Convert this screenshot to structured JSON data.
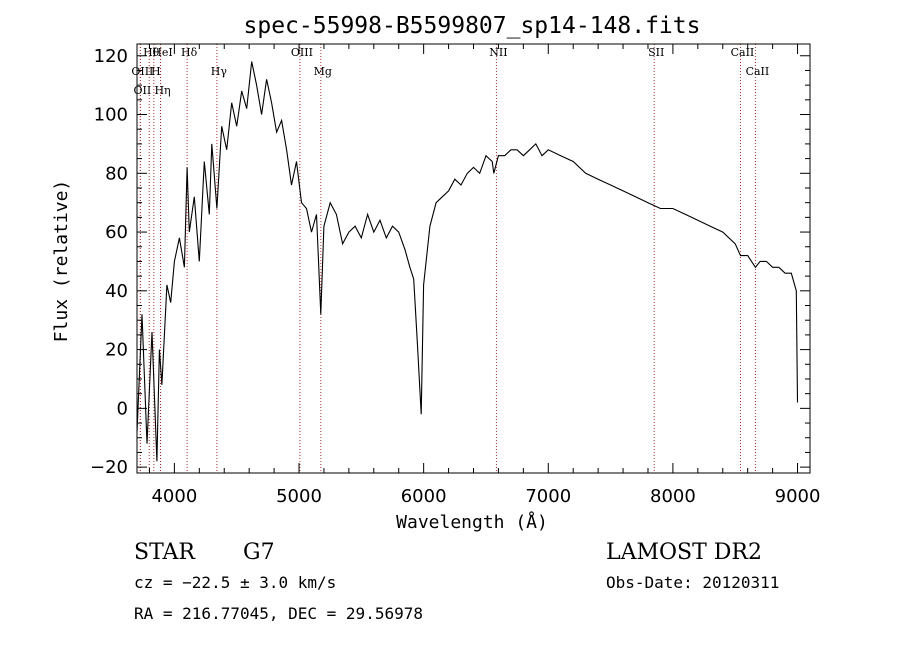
{
  "chart_data": {
    "type": "line",
    "title": "spec-55998-B5599807_sp14-148.fits",
    "xlabel": "Wavelength (Å)",
    "ylabel": "Flux (relative)",
    "xlim": [
      3700,
      9100
    ],
    "ylim": [
      -22,
      124
    ],
    "x_ticks": [
      4000,
      5000,
      6000,
      7000,
      8000,
      9000
    ],
    "y_ticks": [
      -20,
      0,
      20,
      40,
      60,
      80,
      100,
      120
    ],
    "grid": false,
    "line_color": "#000000",
    "marker_color": "#b03030",
    "spectral_lines": [
      {
        "label": "Hθ",
        "wavelength": 3798
      },
      {
        "label": "H",
        "wavelength": 3835
      },
      {
        "label": "OII",
        "wavelength": 3727
      },
      {
        "label": "HeI",
        "wavelength": 3889
      },
      {
        "label": "OIII",
        "wavelength": 3727
      },
      {
        "label": "Hη",
        "wavelength": 3889
      },
      {
        "label": "Hδ",
        "wavelength": 4102
      },
      {
        "label": "Hγ",
        "wavelength": 4341
      },
      {
        "label": "OIII",
        "wavelength": 5007
      },
      {
        "label": "Mg",
        "wavelength": 5175
      },
      {
        "label": "NII",
        "wavelength": 6584
      },
      {
        "label": "SII",
        "wavelength": 7850
      },
      {
        "label": "CaII",
        "wavelength": 8542
      },
      {
        "label": "CaII",
        "wavelength": 8662
      }
    ],
    "series": [
      {
        "x": [
          3700,
          3740,
          3780,
          3820,
          3860,
          3880,
          3900,
          3940,
          3970,
          4000,
          4040,
          4080,
          4102,
          4120,
          4160,
          4200,
          4240,
          4280,
          4300,
          4341,
          4380,
          4420,
          4460,
          4500,
          4540,
          4580,
          4620,
          4660,
          4700,
          4740,
          4780,
          4820,
          4860,
          4900,
          4940,
          4980,
          5020,
          5060,
          5100,
          5140,
          5175,
          5200,
          5250,
          5300,
          5350,
          5400,
          5450,
          5500,
          5550,
          5600,
          5650,
          5700,
          5750,
          5800,
          5850,
          5890,
          5920,
          5950,
          5980,
          6000,
          6050,
          6100,
          6150,
          6200,
          6250,
          6300,
          6350,
          6400,
          6450,
          6500,
          6550,
          6563,
          6600,
          6650,
          6700,
          6750,
          6800,
          6850,
          6900,
          6950,
          7000,
          7100,
          7200,
          7300,
          7400,
          7500,
          7600,
          7700,
          7800,
          7900,
          8000,
          8100,
          8200,
          8300,
          8400,
          8500,
          8542,
          8600,
          8662,
          8700,
          8750,
          8800,
          8850,
          8900,
          8950,
          8990,
          9000
        ],
        "y": [
          -8,
          32,
          -12,
          26,
          -18,
          20,
          8,
          42,
          36,
          50,
          58,
          48,
          82,
          60,
          72,
          50,
          84,
          66,
          90,
          68,
          96,
          88,
          104,
          96,
          108,
          102,
          118,
          110,
          100,
          112,
          104,
          94,
          98,
          88,
          76,
          84,
          70,
          68,
          60,
          66,
          32,
          62,
          70,
          66,
          56,
          60,
          62,
          58,
          66,
          60,
          64,
          58,
          62,
          60,
          54,
          48,
          44,
          22,
          -2,
          42,
          62,
          70,
          72,
          74,
          78,
          76,
          80,
          82,
          80,
          86,
          84,
          80,
          86,
          86,
          88,
          88,
          86,
          88,
          90,
          86,
          88,
          86,
          84,
          80,
          78,
          76,
          74,
          72,
          70,
          68,
          68,
          66,
          64,
          62,
          60,
          56,
          52,
          52,
          48,
          50,
          50,
          48,
          48,
          46,
          46,
          40,
          2
        ]
      }
    ]
  },
  "footer": {
    "object_type": "STAR",
    "subclass": "G7",
    "cz": "cz = −22.5 ± 3.0 km/s",
    "coords": "RA = 216.77045, DEC =  29.56978",
    "survey": "LAMOST DR2",
    "obs_date": "Obs-Date: 20120311"
  }
}
